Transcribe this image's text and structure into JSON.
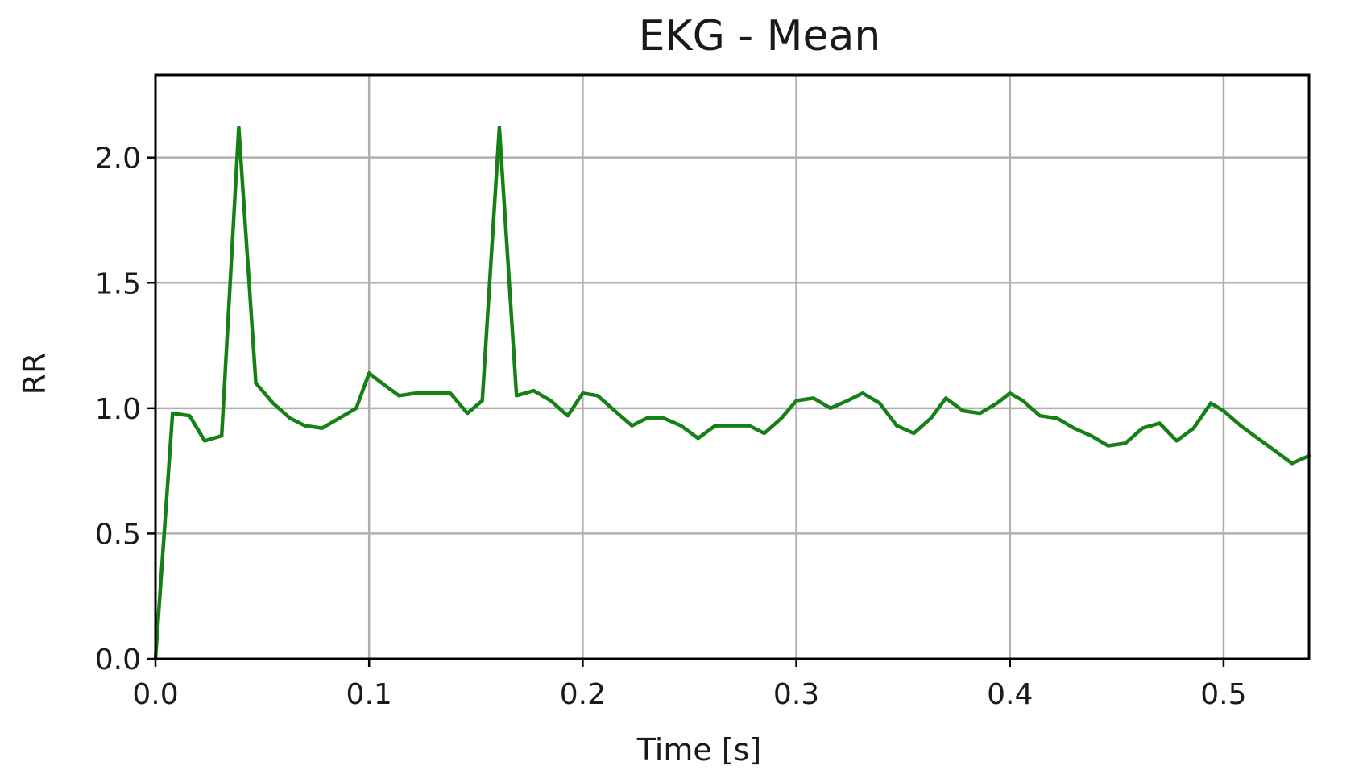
{
  "chart_data": {
    "type": "line",
    "title": "EKG - Mean",
    "xlabel": "Time [s]",
    "ylabel": "RR",
    "xlim": [
      0.0,
      0.54
    ],
    "ylim": [
      0.0,
      2.33
    ],
    "xticks": [
      0.0,
      0.1,
      0.2,
      0.3,
      0.4,
      0.5
    ],
    "xtick_labels": [
      "0.0",
      "0.1",
      "0.2",
      "0.3",
      "0.4",
      "0.5"
    ],
    "yticks": [
      0.0,
      0.5,
      1.0,
      1.5,
      2.0
    ],
    "ytick_labels": [
      "0.0",
      "0.5",
      "1.0",
      "1.5",
      "2.0"
    ],
    "grid": true,
    "legend": "none",
    "series": [
      {
        "color": "#158015",
        "x": [
          0.0,
          0.008,
          0.016,
          0.023,
          0.031,
          0.039,
          0.047,
          0.055,
          0.063,
          0.07,
          0.078,
          0.086,
          0.094,
          0.1,
          0.106,
          0.114,
          0.122,
          0.13,
          0.138,
          0.146,
          0.153,
          0.161,
          0.169,
          0.177,
          0.185,
          0.193,
          0.2,
          0.207,
          0.215,
          0.223,
          0.23,
          0.238,
          0.246,
          0.254,
          0.262,
          0.27,
          0.278,
          0.285,
          0.293,
          0.3,
          0.308,
          0.316,
          0.324,
          0.331,
          0.339,
          0.347,
          0.355,
          0.363,
          0.37,
          0.378,
          0.386,
          0.394,
          0.4,
          0.406,
          0.414,
          0.422,
          0.43,
          0.438,
          0.446,
          0.454,
          0.462,
          0.47,
          0.478,
          0.486,
          0.494,
          0.5,
          0.508,
          0.516,
          0.524,
          0.532,
          0.54
        ],
        "y": [
          0.0,
          0.98,
          0.97,
          0.87,
          0.89,
          2.12,
          1.1,
          1.02,
          0.96,
          0.93,
          0.92,
          0.96,
          1.0,
          1.14,
          1.1,
          1.05,
          1.06,
          1.06,
          1.06,
          0.98,
          1.03,
          2.12,
          1.05,
          1.07,
          1.03,
          0.97,
          1.06,
          1.05,
          0.99,
          0.93,
          0.96,
          0.96,
          0.93,
          0.88,
          0.93,
          0.93,
          0.93,
          0.9,
          0.96,
          1.03,
          1.04,
          1.0,
          1.03,
          1.06,
          1.02,
          0.93,
          0.9,
          0.96,
          1.04,
          0.99,
          0.98,
          1.02,
          1.06,
          1.03,
          0.97,
          0.96,
          0.92,
          0.89,
          0.85,
          0.86,
          0.92,
          0.94,
          0.87,
          0.92,
          1.02,
          0.99,
          0.93,
          0.88,
          0.83,
          0.78,
          0.81
        ]
      }
    ]
  }
}
